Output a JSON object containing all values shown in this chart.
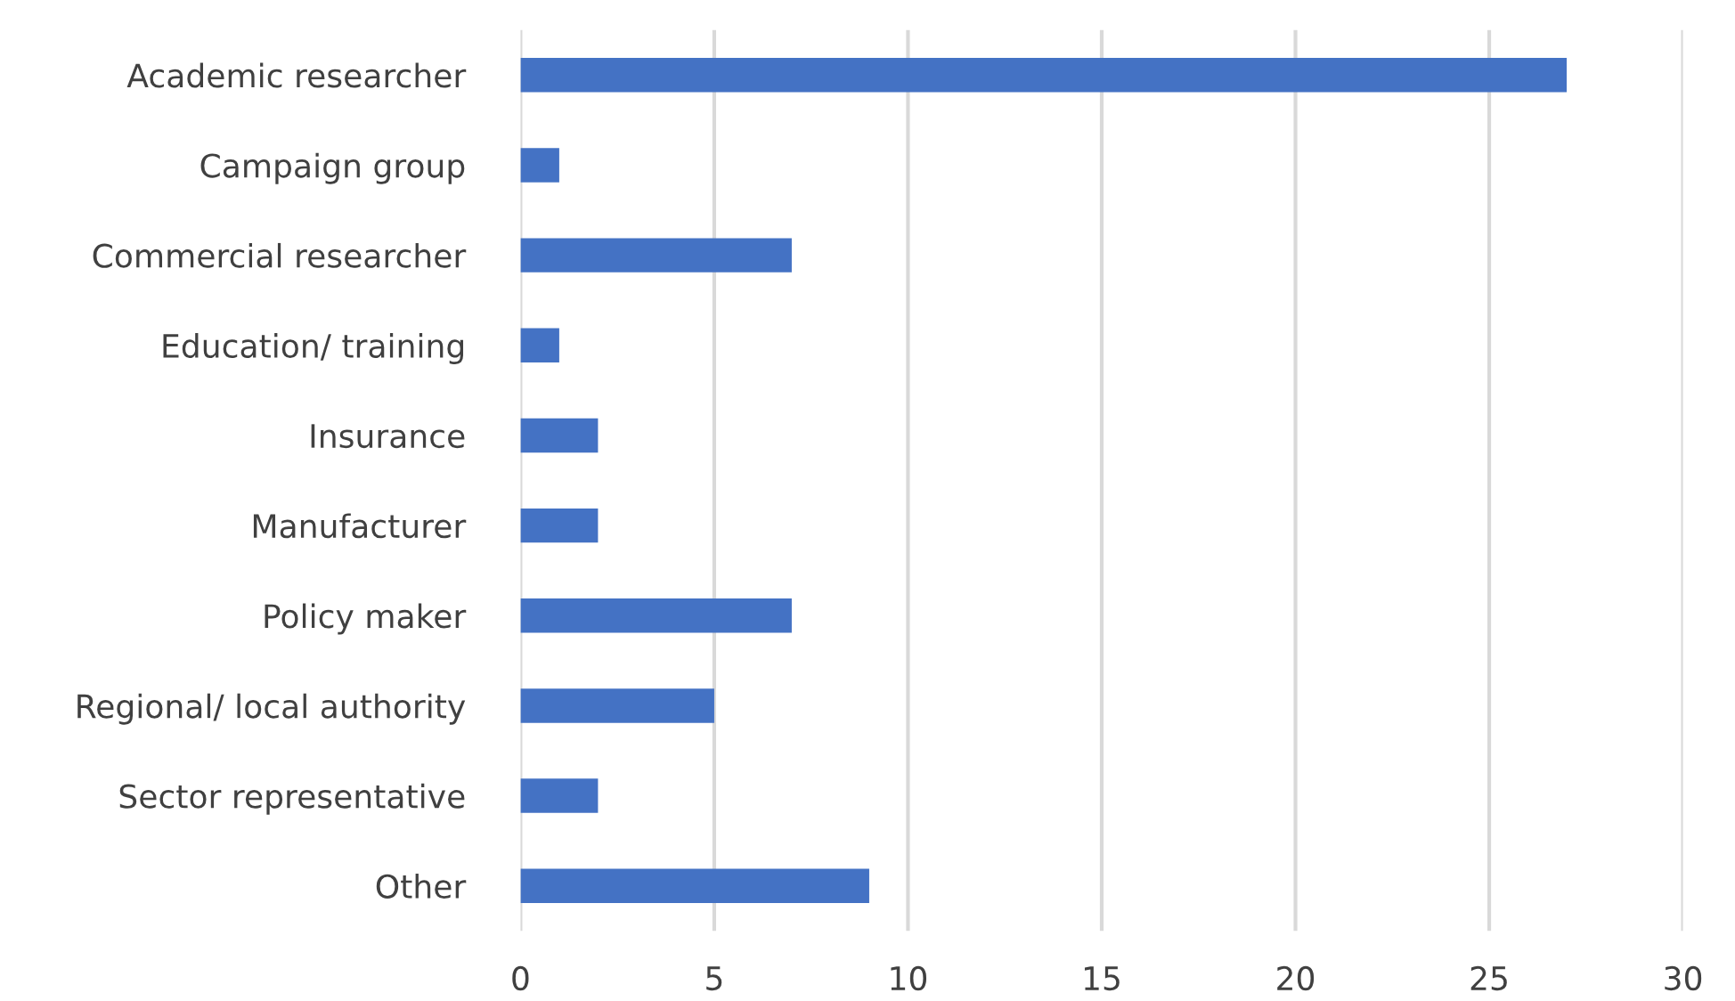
{
  "chart_data": {
    "type": "bar",
    "orientation": "horizontal",
    "categories": [
      "Academic researcher",
      "Campaign group",
      "Commercial researcher",
      "Education/ training",
      "Insurance",
      "Manufacturer",
      "Policy maker",
      "Regional/ local authority",
      "Sector representative",
      "Other"
    ],
    "values": [
      27,
      1,
      7,
      1,
      2,
      2,
      7,
      5,
      2,
      9
    ],
    "color": "#4472c4",
    "xlim": [
      0,
      30
    ],
    "xticks": [
      0,
      5,
      10,
      15,
      20,
      25,
      30
    ],
    "grid": "x",
    "legend": false
  }
}
